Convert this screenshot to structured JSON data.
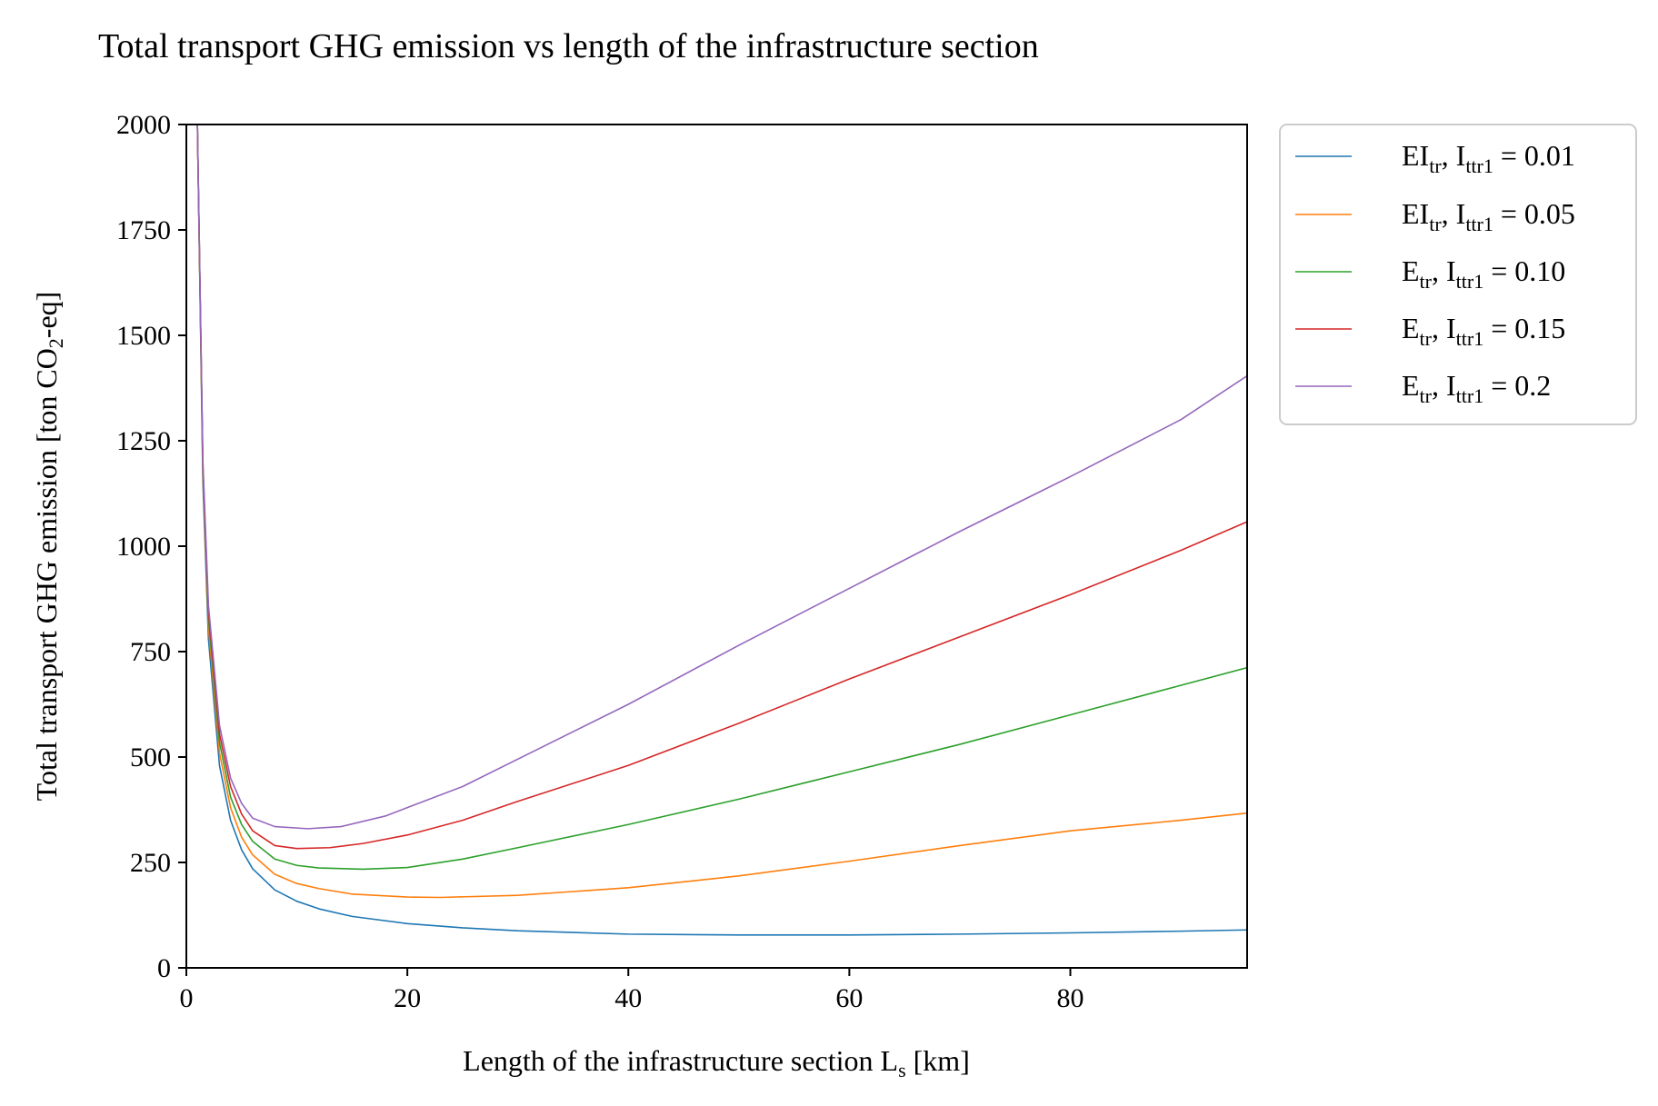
{
  "chart_data": {
    "type": "line",
    "title": "Total transport GHG emission vs length of the infrastructure section",
    "xlabel": {
      "main": "Length of the infrastructure section L",
      "sub": "s",
      "tail": " [km]"
    },
    "ylabel": {
      "main": "Total transport GHG emission [ton CO",
      "sub": "2",
      "tail": "-eq]"
    },
    "xlim": [
      0,
      96
    ],
    "ylim": [
      0,
      2000
    ],
    "xticks": [
      0,
      20,
      40,
      60,
      80
    ],
    "yticks": [
      0,
      250,
      500,
      750,
      1000,
      1250,
      1500,
      1750,
      2000
    ],
    "grid": false,
    "legend_position": "outside-top-right",
    "series": [
      {
        "name": "EI_tr, I_ttr1 = 0.01",
        "legend": {
          "base": "EI",
          "sub": "tr",
          "sep": ", ",
          "base2": "I",
          "sub2": "ttr1",
          "eq": " = 0.01"
        },
        "color": "#1f77b4",
        "x": [
          1,
          1.5,
          2,
          3,
          4,
          5,
          6,
          8,
          10,
          12,
          15,
          20,
          25,
          30,
          40,
          50,
          60,
          70,
          80,
          90,
          96
        ],
        "y": [
          2000,
          1150,
          780,
          480,
          350,
          280,
          235,
          185,
          158,
          140,
          122,
          105,
          95,
          88,
          80,
          78,
          78,
          80,
          83,
          87,
          90
        ]
      },
      {
        "name": "EI_tr, I_ttr1 = 0.05",
        "legend": {
          "base": "EI",
          "sub": "tr",
          "sep": ", ",
          "base2": "I",
          "sub2": "ttr1",
          "eq": " = 0.05"
        },
        "color": "#ff7f0e",
        "x": [
          1,
          1.5,
          2,
          3,
          4,
          5,
          6,
          8,
          10,
          12,
          15,
          20,
          23,
          30,
          40,
          50,
          60,
          70,
          80,
          90,
          96
        ],
        "y": [
          2000,
          1170,
          810,
          510,
          380,
          310,
          268,
          222,
          200,
          188,
          175,
          168,
          167,
          172,
          190,
          218,
          253,
          290,
          325,
          350,
          367
        ]
      },
      {
        "name": "E_tr, I_ttr1 = 0.10",
        "legend": {
          "base": "E",
          "sub": "tr",
          "sep": ", ",
          "base2": "I",
          "sub2": "ttr1",
          "eq": " = 0.10"
        },
        "color": "#2ca02c",
        "x": [
          1,
          1.5,
          2,
          3,
          4,
          5,
          6,
          8,
          10,
          12,
          16,
          20,
          25,
          30,
          40,
          50,
          60,
          70,
          80,
          90,
          96
        ],
        "y": [
          2000,
          1180,
          830,
          535,
          405,
          340,
          300,
          258,
          243,
          237,
          234,
          238,
          258,
          285,
          340,
          400,
          465,
          530,
          600,
          670,
          712
        ]
      },
      {
        "name": "E_tr, I_ttr1 = 0.15",
        "legend": {
          "base": "E",
          "sub": "tr",
          "sep": ", ",
          "base2": "I",
          "sub2": "ttr1",
          "eq": " = 0.15"
        },
        "color": "#d62728",
        "x": [
          1,
          1.5,
          2,
          3,
          4,
          5,
          6,
          8,
          10,
          13,
          16,
          20,
          25,
          30,
          40,
          50,
          60,
          70,
          80,
          90,
          96
        ],
        "y": [
          2000,
          1190,
          845,
          555,
          430,
          365,
          325,
          290,
          283,
          285,
          295,
          315,
          350,
          395,
          480,
          580,
          685,
          785,
          885,
          990,
          1058
        ]
      },
      {
        "name": "E_tr, I_ttr1 = 0.2",
        "legend": {
          "base": "E",
          "sub": "tr",
          "sep": ", ",
          "base2": "I",
          "sub2": "ttr1",
          "eq": " = 0.2"
        },
        "color": "#9467bd",
        "x": [
          1,
          1.5,
          2,
          3,
          4,
          5,
          6,
          8,
          11,
          14,
          18,
          20,
          25,
          30,
          40,
          50,
          60,
          70,
          80,
          90,
          96
        ],
        "y": [
          2000,
          1200,
          860,
          575,
          450,
          390,
          355,
          335,
          330,
          335,
          360,
          380,
          430,
          495,
          625,
          765,
          900,
          1035,
          1165,
          1300,
          1404
        ]
      }
    ]
  }
}
